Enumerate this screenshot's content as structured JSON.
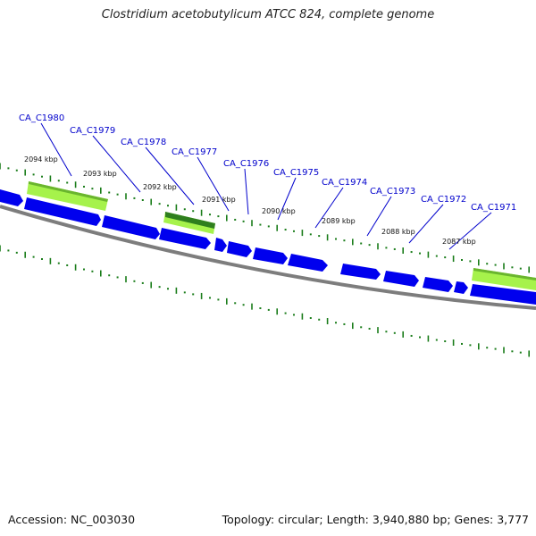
{
  "header": {
    "title": "Clostridium acetobutylicum ATCC 824, complete genome"
  },
  "footer": {
    "accession": "Accession: NC_003030",
    "summary": "Topology: circular; Length: 3,940,880 bp; Genes: 3,777"
  },
  "colors": {
    "gene_fill": "#0000ee",
    "gene_edge": "#4f7fff",
    "rna_fill": "#a6f24b",
    "rna_fill_dark": "#3a8c1e",
    "backbone": "#7d7d7d",
    "ruler": "#1b7d1b",
    "label": "#0000cc"
  },
  "genes": [
    "CA_C1980",
    "CA_C1979",
    "CA_C1978",
    "CA_C1977",
    "CA_C1976",
    "CA_C1975",
    "CA_C1974",
    "CA_C1973",
    "CA_C1972",
    "CA_C1971"
  ],
  "kbp_ticks": [
    "2094 kbp",
    "2093 kbp",
    "2092 kbp",
    "2091 kbp",
    "2090 kbp",
    "2089 kbp",
    "2088 kbp",
    "2087 kbp"
  ]
}
